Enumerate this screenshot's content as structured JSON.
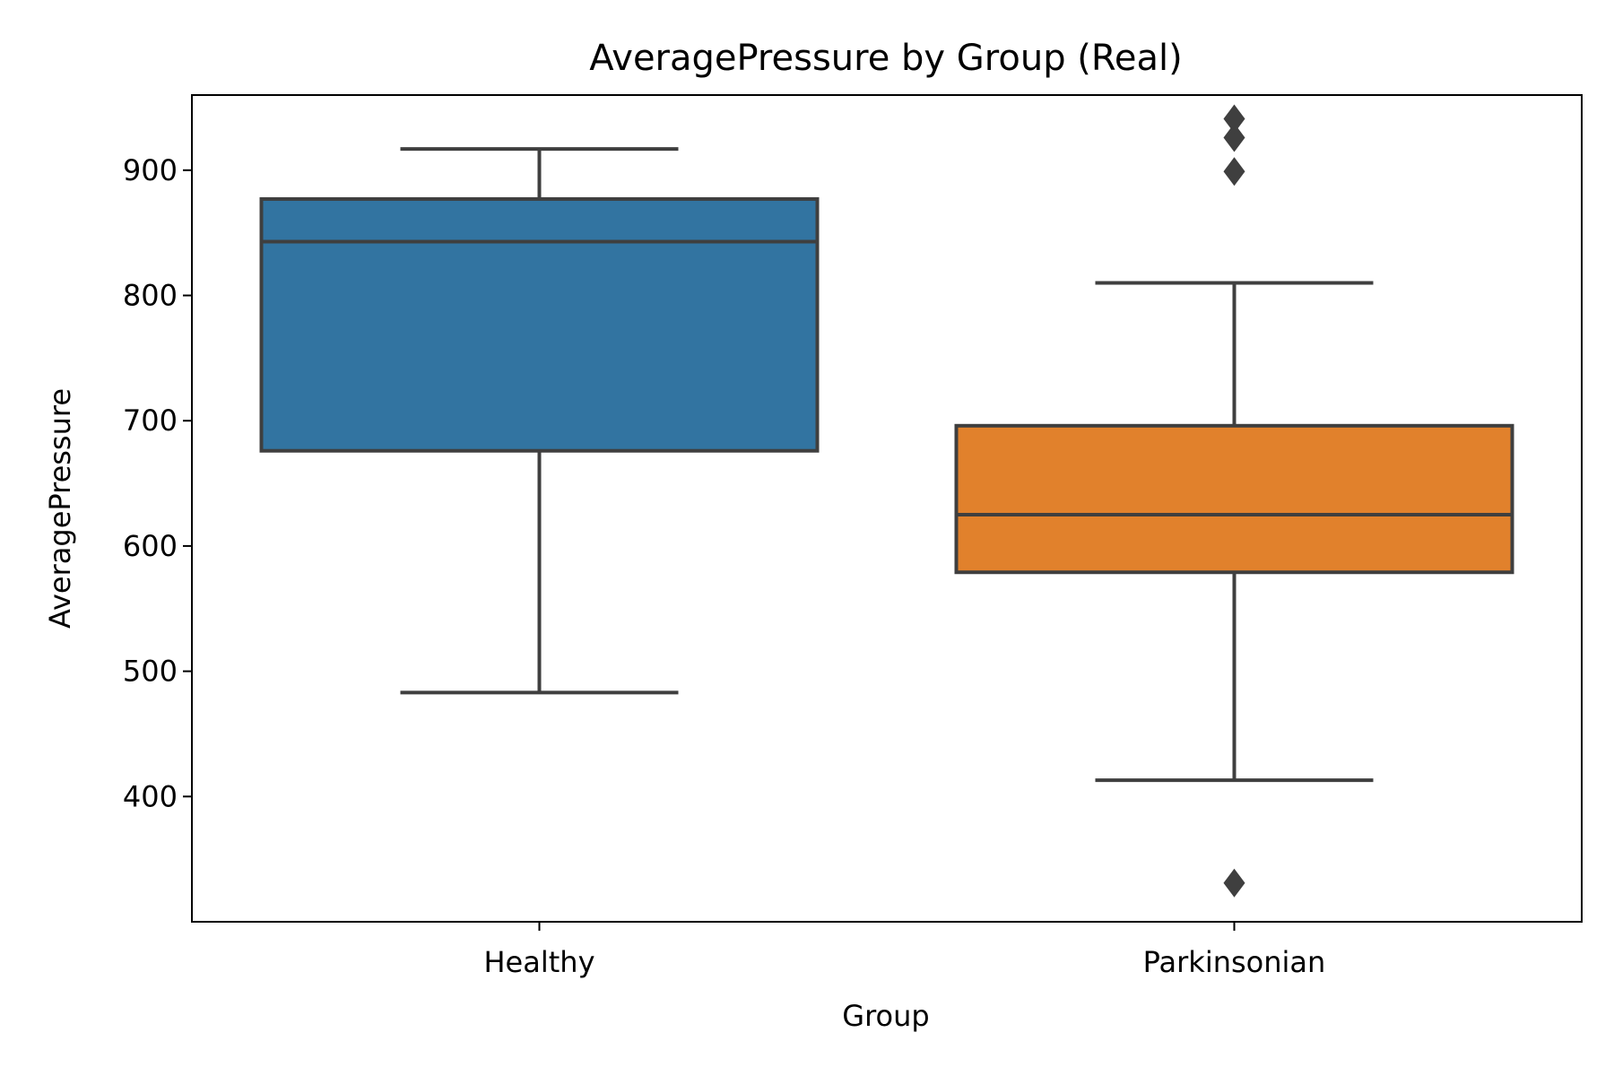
{
  "chart_data": {
    "type": "box",
    "title": "AveragePressure by Group (Real)",
    "xlabel": "Group",
    "ylabel": "AveragePressure",
    "categories": [
      "Healthy",
      "Parkinsonian"
    ],
    "yticks": [
      400,
      500,
      600,
      700,
      800,
      900
    ],
    "ylim": [
      300,
      960
    ],
    "grid": false,
    "boxes": [
      {
        "name": "Healthy",
        "color": "#3274a1",
        "whisker_low": 483,
        "q1": 676,
        "median": 843,
        "q3": 877,
        "whisker_high": 917,
        "outliers": []
      },
      {
        "name": "Parkinsonian",
        "color": "#e1812c",
        "whisker_low": 413,
        "q1": 579,
        "median": 625,
        "q3": 696,
        "whisker_high": 810,
        "outliers": [
          331,
          899,
          926,
          941
        ]
      }
    ],
    "line_color": "#3f3f3f"
  }
}
